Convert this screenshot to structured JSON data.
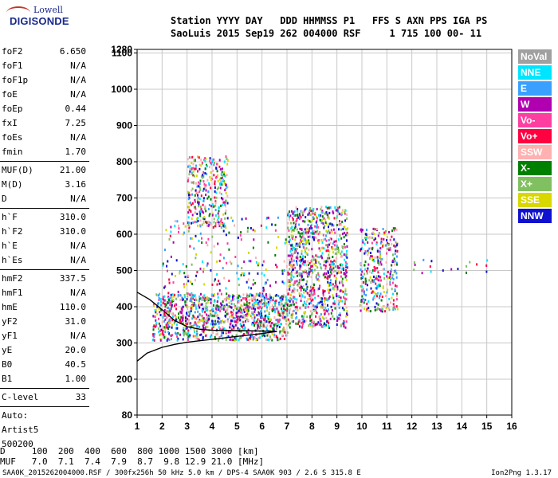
{
  "logo": {
    "top": "Lowell",
    "bottom": "DIGISONDE"
  },
  "header": {
    "line1": "Station YYYY DAY   DDD HHMMSS P1   FFS S AXN PPS IGA PS",
    "line2": "SaoLuis 2015 Sep19 262 004000 RSF     1 715 100 00- 11"
  },
  "params": {
    "group1": [
      {
        "name": "foF2",
        "value": "6.650"
      },
      {
        "name": "foF1",
        "value": "N/A"
      },
      {
        "name": "foF1p",
        "value": "N/A"
      },
      {
        "name": "foE",
        "value": "N/A"
      },
      {
        "name": "foEp",
        "value": "0.44"
      },
      {
        "name": "fxI",
        "value": "7.25"
      },
      {
        "name": "foEs",
        "value": "N/A"
      },
      {
        "name": "fmin",
        "value": "1.70"
      }
    ],
    "group2": [
      {
        "name": "MUF(D)",
        "value": "21.00"
      },
      {
        "name": "M(D)",
        "value": "3.16"
      },
      {
        "name": "D",
        "value": "N/A"
      }
    ],
    "group3": [
      {
        "name": "h`F",
        "value": "310.0"
      },
      {
        "name": "h`F2",
        "value": "310.0"
      },
      {
        "name": "h`E",
        "value": "N/A"
      },
      {
        "name": "h`Es",
        "value": "N/A"
      }
    ],
    "group4": [
      {
        "name": "hmF2",
        "value": "337.5"
      },
      {
        "name": "hmF1",
        "value": "N/A"
      },
      {
        "name": "hmE",
        "value": "110.0"
      },
      {
        "name": "yF2",
        "value": "31.0"
      },
      {
        "name": "yF1",
        "value": "N/A"
      },
      {
        "name": "yE",
        "value": "20.0"
      },
      {
        "name": "B0",
        "value": "40.5"
      },
      {
        "name": "B1",
        "value": "1.00"
      }
    ],
    "group5": [
      {
        "name": "C-level",
        "value": "33"
      }
    ],
    "auto_label": "Auto:",
    "scaler": "Artist5",
    "version": "500200"
  },
  "legend": [
    {
      "label": "NoVal",
      "color": "#a0a0a0"
    },
    {
      "label": "NNE",
      "color": "#00e5ff"
    },
    {
      "label": "E",
      "color": "#3aa0ff"
    },
    {
      "label": "W",
      "color": "#b000b0"
    },
    {
      "label": "Vo-",
      "color": "#ff3fa0"
    },
    {
      "label": "Vo+",
      "color": "#ff0040"
    },
    {
      "label": "SSW",
      "color": "#ffb0b0"
    },
    {
      "label": "X-",
      "color": "#008000"
    },
    {
      "label": "X+",
      "color": "#80c060"
    },
    {
      "label": "SSE",
      "color": "#d8d800"
    },
    {
      "label": "NNW",
      "color": "#1010d0"
    }
  ],
  "footer": {
    "line1": "D     100  200  400  600  800 1000 1500 3000 [km]",
    "line2": "MUF   7.0  7.1  7.4  7.9  8.7  9.8 12.9 21.0 [MHz]",
    "line3": "SAA0K_2015262004000.RSF / 300fx256h 50 kHz 5.0 km / DPS-4 SAA0K 903 / 2.6 S 315.8 E",
    "line3_right": "Ion2Png 1.3.17"
  },
  "chart_data": {
    "type": "scatter",
    "x_range": [
      1,
      16
    ],
    "y_ticks": [
      80,
      200,
      300,
      400,
      500,
      600,
      700,
      800,
      900,
      1000,
      1100,
      1280
    ],
    "x_ticks": [
      1,
      2,
      3,
      4,
      5,
      6,
      7,
      8,
      9,
      10,
      11,
      12,
      13,
      14,
      15,
      16
    ],
    "xlabel": "",
    "ylabel": "",
    "grid": true,
    "regions": [
      {
        "x": [
          1.6,
          7.0
        ],
        "y": [
          310,
          440
        ],
        "density": "high"
      },
      {
        "x": [
          2.0,
          7.2
        ],
        "y": [
          350,
          650
        ],
        "density": "low"
      },
      {
        "x": [
          3.0,
          4.6
        ],
        "y": [
          620,
          820
        ],
        "density": "medium"
      },
      {
        "x": [
          7.0,
          9.4
        ],
        "y": [
          345,
          680
        ],
        "density": "high"
      },
      {
        "x": [
          9.9,
          11.4
        ],
        "y": [
          390,
          620
        ],
        "density": "medium"
      },
      {
        "x": [
          12.0,
          15.0
        ],
        "y": [
          495,
          535
        ],
        "density": "sparse"
      }
    ],
    "trace_lower": [
      [
        1.0,
        250
      ],
      [
        1.4,
        272
      ],
      [
        2.0,
        288
      ],
      [
        2.5,
        296
      ],
      [
        3.0,
        302
      ],
      [
        4.0,
        310
      ],
      [
        5.0,
        318
      ],
      [
        6.0,
        326
      ],
      [
        6.6,
        332
      ]
    ],
    "trace_upper": [
      [
        1.0,
        440
      ],
      [
        1.5,
        420
      ],
      [
        2.0,
        392
      ],
      [
        2.5,
        362
      ],
      [
        3.0,
        345
      ],
      [
        3.5,
        338
      ],
      [
        4.0,
        335
      ],
      [
        5.0,
        334
      ],
      [
        6.0,
        333
      ],
      [
        6.6,
        332
      ]
    ]
  }
}
